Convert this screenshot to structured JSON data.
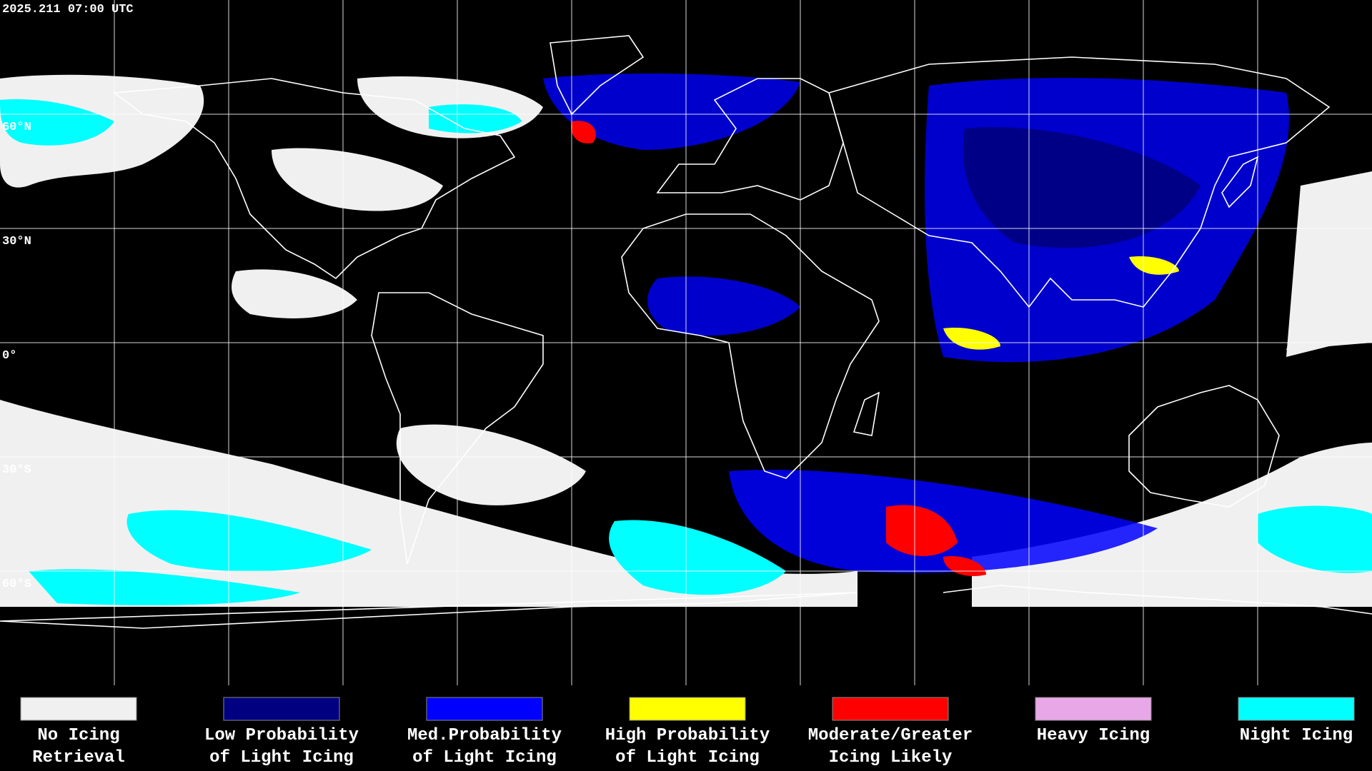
{
  "timestamp": "2025.211 07:00 UTC",
  "latitude_labels": [
    "60°N",
    "30°N",
    "0°",
    "30°S",
    "60°S"
  ],
  "legend": [
    {
      "line1": "No Icing",
      "line2": "Retrieval",
      "color": "#f0f0f0"
    },
    {
      "line1": "Low Probability",
      "line2": "of Light Icing",
      "color": "#000080"
    },
    {
      "line1": "Med.Probability",
      "line2": "of Light Icing",
      "color": "#0000ff"
    },
    {
      "line1": "High Probability",
      "line2": "of Light Icing",
      "color": "#ffff00"
    },
    {
      "line1": "Moderate/Greater",
      "line2": "Icing Likely",
      "color": "#ff0000"
    },
    {
      "line1": "Heavy Icing",
      "line2": "",
      "color": "#e8a8e8"
    },
    {
      "line1": "Night Icing",
      "line2": "",
      "color": "#00ffff"
    }
  ]
}
